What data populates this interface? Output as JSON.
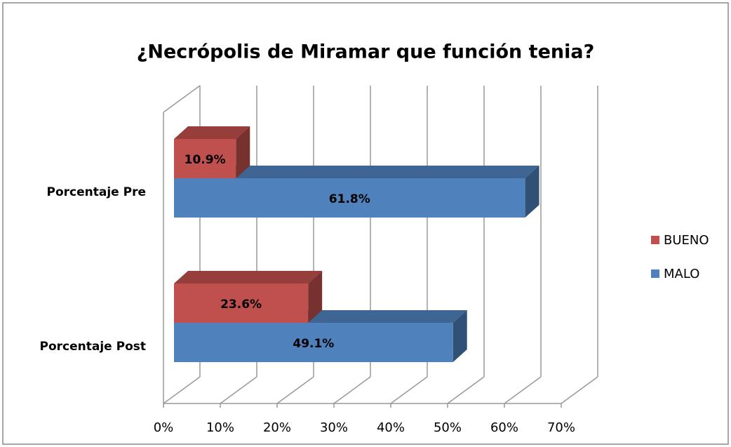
{
  "chart_data": {
    "type": "bar3d_horizontal",
    "title": "¿Necrópolis de Miramar que función tenia?",
    "categories": [
      "Porcentaje Pre",
      "Porcentaje Post"
    ],
    "series": [
      {
        "name": "BUENO",
        "color": "#c0504d",
        "values": [
          10.9,
          23.6
        ],
        "value_labels": [
          "10.9%",
          "23.6%"
        ]
      },
      {
        "name": "MALO",
        "color": "#4f81bd",
        "values": [
          61.8,
          49.1
        ],
        "value_labels": [
          "61.8%",
          "49.1%"
        ]
      }
    ],
    "xlim": [
      0,
      70
    ],
    "xticks": [
      {
        "value": 0,
        "label": "0%"
      },
      {
        "value": 10,
        "label": "10%"
      },
      {
        "value": 20,
        "label": "20%"
      },
      {
        "value": 30,
        "label": "30%"
      },
      {
        "value": 40,
        "label": "40%"
      },
      {
        "value": 50,
        "label": "50%"
      },
      {
        "value": 60,
        "label": "60%"
      },
      {
        "value": 70,
        "label": "70%"
      }
    ],
    "grid": true,
    "legend": "right"
  }
}
